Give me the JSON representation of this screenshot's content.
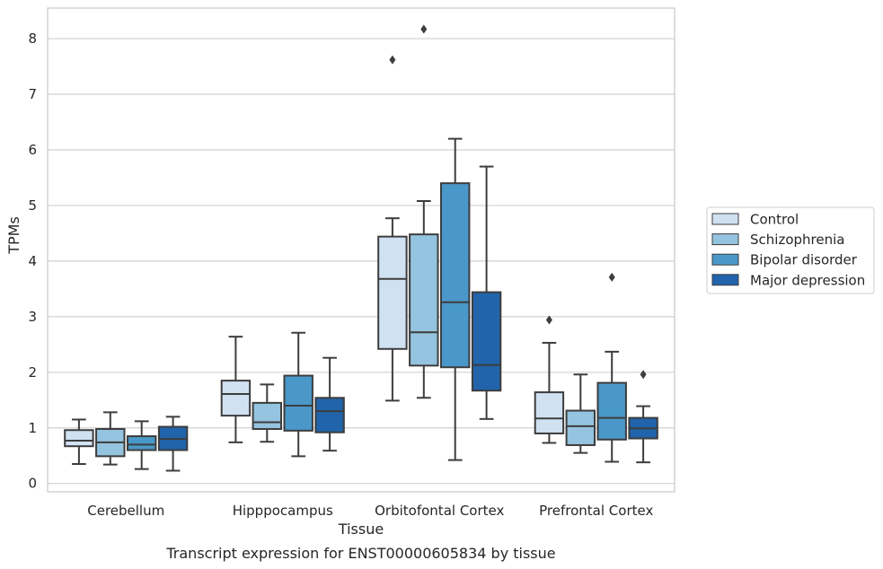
{
  "chart_data": {
    "type": "box",
    "title": "",
    "caption": "Transcript expression for ENST00000605834 by tissue",
    "xlabel": "Tissue",
    "ylabel": "TPMs",
    "ylim": [
      -0.15,
      8.55
    ],
    "yticks": [
      0,
      1,
      2,
      3,
      4,
      5,
      6,
      7,
      8
    ],
    "grid": "horizontal",
    "legend_position": "right",
    "categories": [
      "Cerebellum",
      "Hipppocampus",
      "Orbitofontal Cortex",
      "Prefrontal Cortex"
    ],
    "series": [
      {
        "name": "Control",
        "color": "#d0e1f2",
        "boxes": [
          {
            "whisker_low": 0.35,
            "q1": 0.67,
            "median": 0.77,
            "q3": 0.96,
            "whisker_high": 1.15,
            "outliers": []
          },
          {
            "whisker_low": 0.74,
            "q1": 1.22,
            "median": 1.61,
            "q3": 1.85,
            "whisker_high": 2.64,
            "outliers": []
          },
          {
            "whisker_low": 1.49,
            "q1": 2.42,
            "median": 3.68,
            "q3": 4.44,
            "whisker_high": 4.77,
            "outliers": [
              7.62
            ]
          },
          {
            "whisker_low": 0.73,
            "q1": 0.9,
            "median": 1.17,
            "q3": 1.64,
            "whisker_high": 2.53,
            "outliers": [
              2.94
            ]
          }
        ]
      },
      {
        "name": "Schizophrenia",
        "color": "#94c4df",
        "boxes": [
          {
            "whisker_low": 0.34,
            "q1": 0.49,
            "median": 0.74,
            "q3": 0.98,
            "whisker_high": 1.28,
            "outliers": []
          },
          {
            "whisker_low": 0.75,
            "q1": 0.98,
            "median": 1.1,
            "q3": 1.45,
            "whisker_high": 1.78,
            "outliers": []
          },
          {
            "whisker_low": 1.54,
            "q1": 2.12,
            "median": 2.72,
            "q3": 4.48,
            "whisker_high": 5.08,
            "outliers": [
              8.17
            ]
          },
          {
            "whisker_low": 0.55,
            "q1": 0.69,
            "median": 1.03,
            "q3": 1.31,
            "whisker_high": 1.96,
            "outliers": []
          }
        ]
      },
      {
        "name": "Bipolar disorder",
        "color": "#4a98c9",
        "boxes": [
          {
            "whisker_low": 0.26,
            "q1": 0.6,
            "median": 0.7,
            "q3": 0.85,
            "whisker_high": 1.12,
            "outliers": []
          },
          {
            "whisker_low": 0.49,
            "q1": 0.95,
            "median": 1.4,
            "q3": 1.94,
            "whisker_high": 2.71,
            "outliers": []
          },
          {
            "whisker_low": 0.42,
            "q1": 2.09,
            "median": 3.26,
            "q3": 5.4,
            "whisker_high": 6.2,
            "outliers": []
          },
          {
            "whisker_low": 0.39,
            "q1": 0.79,
            "median": 1.18,
            "q3": 1.81,
            "whisker_high": 2.37,
            "outliers": [
              3.71
            ]
          }
        ]
      },
      {
        "name": "Major depression",
        "color": "#2164ab",
        "boxes": [
          {
            "whisker_low": 0.23,
            "q1": 0.6,
            "median": 0.8,
            "q3": 1.02,
            "whisker_high": 1.2,
            "outliers": []
          },
          {
            "whisker_low": 0.59,
            "q1": 0.92,
            "median": 1.3,
            "q3": 1.54,
            "whisker_high": 2.26,
            "outliers": []
          },
          {
            "whisker_low": 1.16,
            "q1": 1.67,
            "median": 2.13,
            "q3": 3.44,
            "whisker_high": 5.7,
            "outliers": []
          },
          {
            "whisker_low": 0.38,
            "q1": 0.81,
            "median": 0.99,
            "q3": 1.18,
            "whisker_high": 1.39,
            "outliers": [
              1.96
            ]
          }
        ]
      }
    ]
  }
}
